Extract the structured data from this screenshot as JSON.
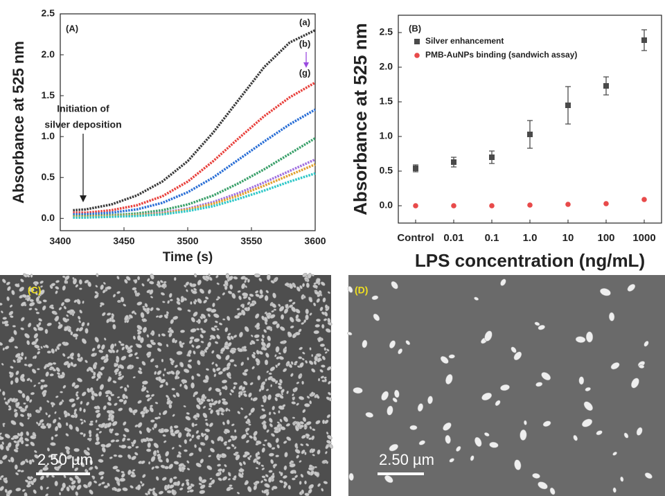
{
  "chart_data": [
    {
      "type": "line",
      "annotations": [
        "(A)",
        "(a)",
        "(b)",
        "(g)",
        "Initiation of",
        "silver deposition"
      ],
      "x_label": "Time (s)",
      "y_label": "Absorbance at 525 nm",
      "x": [
        3410,
        3420,
        3440,
        3460,
        3480,
        3500,
        3520,
        3540,
        3560,
        3580,
        3600
      ],
      "series": [
        {
          "color": "#3a3a3a",
          "values": [
            0.1,
            0.11,
            0.17,
            0.28,
            0.45,
            0.7,
            1.05,
            1.45,
            1.85,
            2.15,
            2.3
          ]
        },
        {
          "color": "#e8413c",
          "values": [
            0.07,
            0.07,
            0.1,
            0.16,
            0.27,
            0.45,
            0.7,
            0.98,
            1.25,
            1.48,
            1.66
          ]
        },
        {
          "color": "#2a6fd6",
          "values": [
            0.05,
            0.05,
            0.07,
            0.11,
            0.19,
            0.32,
            0.5,
            0.72,
            0.94,
            1.15,
            1.33
          ]
        },
        {
          "color": "#3aa06a",
          "values": [
            0.03,
            0.03,
            0.04,
            0.06,
            0.1,
            0.17,
            0.28,
            0.43,
            0.6,
            0.79,
            0.98
          ]
        },
        {
          "color": "#a070e0",
          "values": [
            0.02,
            0.02,
            0.03,
            0.04,
            0.07,
            0.12,
            0.2,
            0.31,
            0.44,
            0.58,
            0.72
          ]
        },
        {
          "color": "#e0a030",
          "values": [
            0.02,
            0.02,
            0.03,
            0.04,
            0.06,
            0.11,
            0.18,
            0.28,
            0.4,
            0.53,
            0.66
          ]
        },
        {
          "color": "#30c8c8",
          "values": [
            0.01,
            0.01,
            0.02,
            0.03,
            0.05,
            0.09,
            0.15,
            0.24,
            0.34,
            0.45,
            0.55
          ]
        }
      ],
      "xlim": [
        3400,
        3600
      ],
      "xticks": [
        3400,
        3450,
        3500,
        3550,
        3600
      ],
      "ylim": [
        -0.15,
        2.5
      ],
      "yticks": [
        {
          "value": 0,
          "label": "0.0"
        },
        0.5,
        {
          "value": 1,
          "label": "1.0"
        },
        1.5,
        {
          "value": 2,
          "label": "2.0"
        },
        2.5
      ]
    },
    {
      "type": "scatter",
      "annotations": [
        "(B)"
      ],
      "x_label": "LPS concentration (ng/mL)",
      "y_label": "Absorbance at 525 nm",
      "categories": [
        "Control",
        "0.01",
        "0.1",
        "1.0",
        "10",
        "100",
        "1000"
      ],
      "series": [
        {
          "name": "Silver enhancement",
          "color": "#4a4a4a",
          "marker": "square",
          "values": [
            0.54,
            0.63,
            0.7,
            1.03,
            1.45,
            1.73,
            2.39
          ],
          "errors": [
            0.05,
            0.07,
            0.09,
            0.2,
            0.27,
            0.13,
            0.15
          ]
        },
        {
          "name": "PMB-AuNPs binding (sandwich assay)",
          "color": "#e84a4a",
          "marker": "circle",
          "values": [
            0.0,
            0.0,
            0.0,
            0.01,
            0.02,
            0.03,
            0.09
          ]
        }
      ],
      "legend": "upper-left",
      "ylim": [
        -0.25,
        2.75
      ],
      "yticks": [
        {
          "value": 0,
          "label": "0.0"
        },
        0.5,
        {
          "value": 1,
          "label": "1.0"
        },
        1.5,
        {
          "value": 2,
          "label": "2.0"
        },
        2.5
      ]
    }
  ],
  "panels": [
    {
      "label": "(C)",
      "scale_bar": "2.50 µm"
    },
    {
      "label": "(D)",
      "scale_bar": "2.50 µm"
    }
  ]
}
